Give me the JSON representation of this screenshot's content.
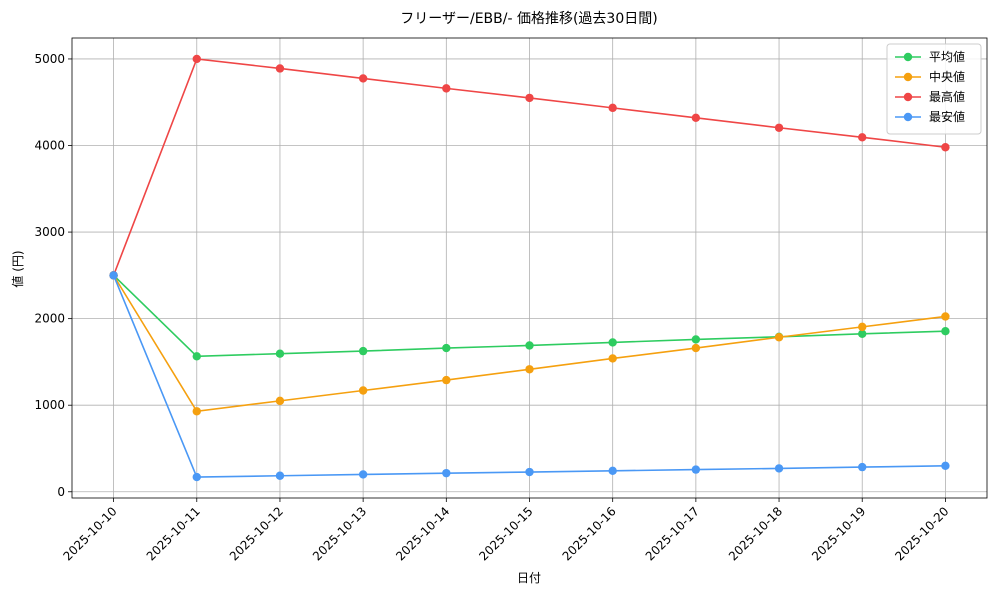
{
  "chart_data": {
    "type": "line",
    "title": "フリーザー/EBB/- 価格推移(過去30日間)",
    "x_label": "日付",
    "y_label": "値 (円)",
    "categories": [
      "2025-10-10",
      "2025-10-11",
      "2025-10-12",
      "2025-10-13",
      "2025-10-14",
      "2025-10-15",
      "2025-10-16",
      "2025-10-17",
      "2025-10-18",
      "2025-10-19",
      "2025-10-20"
    ],
    "series": [
      {
        "name": "平均値",
        "color": "#2ecc60",
        "values": [
          2500,
          1565,
          1595,
          1625,
          1660,
          1690,
          1725,
          1760,
          1790,
          1825,
          1855
        ]
      },
      {
        "name": "中央値",
        "color": "#f5a00f",
        "values": [
          2500,
          930,
          1050,
          1170,
          1290,
          1415,
          1540,
          1660,
          1785,
          1905,
          2025
        ]
      },
      {
        "name": "最高値",
        "color": "#ef4646",
        "values": [
          2500,
          5000,
          4890,
          4775,
          4660,
          4550,
          4435,
          4320,
          4205,
          4095,
          3980
        ]
      },
      {
        "name": "最安値",
        "color": "#4a98f5",
        "values": [
          2500,
          170,
          185,
          200,
          215,
          228,
          242,
          256,
          270,
          285,
          300
        ]
      }
    ],
    "ylim": [
      -72,
      5242
    ],
    "yticks": [
      0,
      1000,
      2000,
      3000,
      4000,
      5000
    ],
    "grid": true,
    "legend": "upper right"
  }
}
